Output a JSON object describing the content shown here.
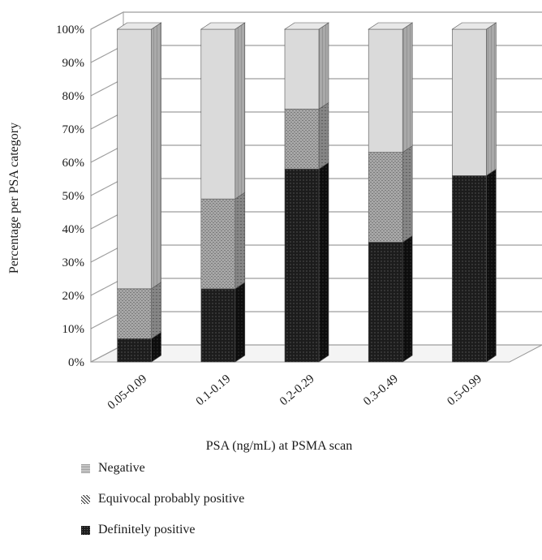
{
  "chart_data": {
    "type": "bar",
    "stacked": true,
    "three_d": true,
    "percent_stacked": true,
    "categories": [
      "0.05-0.09",
      "0.1-0.19",
      "0.2-0.29",
      "0.3-0.49",
      "0.5-0.99"
    ],
    "series": [
      {
        "name": "Definitely positive",
        "values": [
          7,
          22,
          58,
          36,
          56
        ],
        "color": "#222222"
      },
      {
        "name": "Equivocal probably positive",
        "values": [
          15,
          27,
          18,
          27,
          0
        ],
        "color": "#9a9a9a"
      },
      {
        "name": "Negative",
        "values": [
          78,
          51,
          24,
          37,
          44
        ],
        "color": "#d6d6d6"
      }
    ],
    "xlabel": "PSA (ng/mL) at PSMA scan",
    "ylabel": "Percentage per PSA category",
    "ylim": [
      0,
      100
    ],
    "y_ticks": [
      "0%",
      "10%",
      "20%",
      "30%",
      "40%",
      "50%",
      "60%",
      "70%",
      "80%",
      "90%",
      "100%"
    ],
    "grid": true,
    "legend_position": "bottom-left"
  },
  "legend": [
    {
      "label": "Negative",
      "icon": "light-hatched-square-icon"
    },
    {
      "label": "Equivocal probably positive",
      "icon": "crosshatch-square-icon"
    },
    {
      "label": "Definitely positive",
      "icon": "dark-dotted-square-icon"
    }
  ]
}
